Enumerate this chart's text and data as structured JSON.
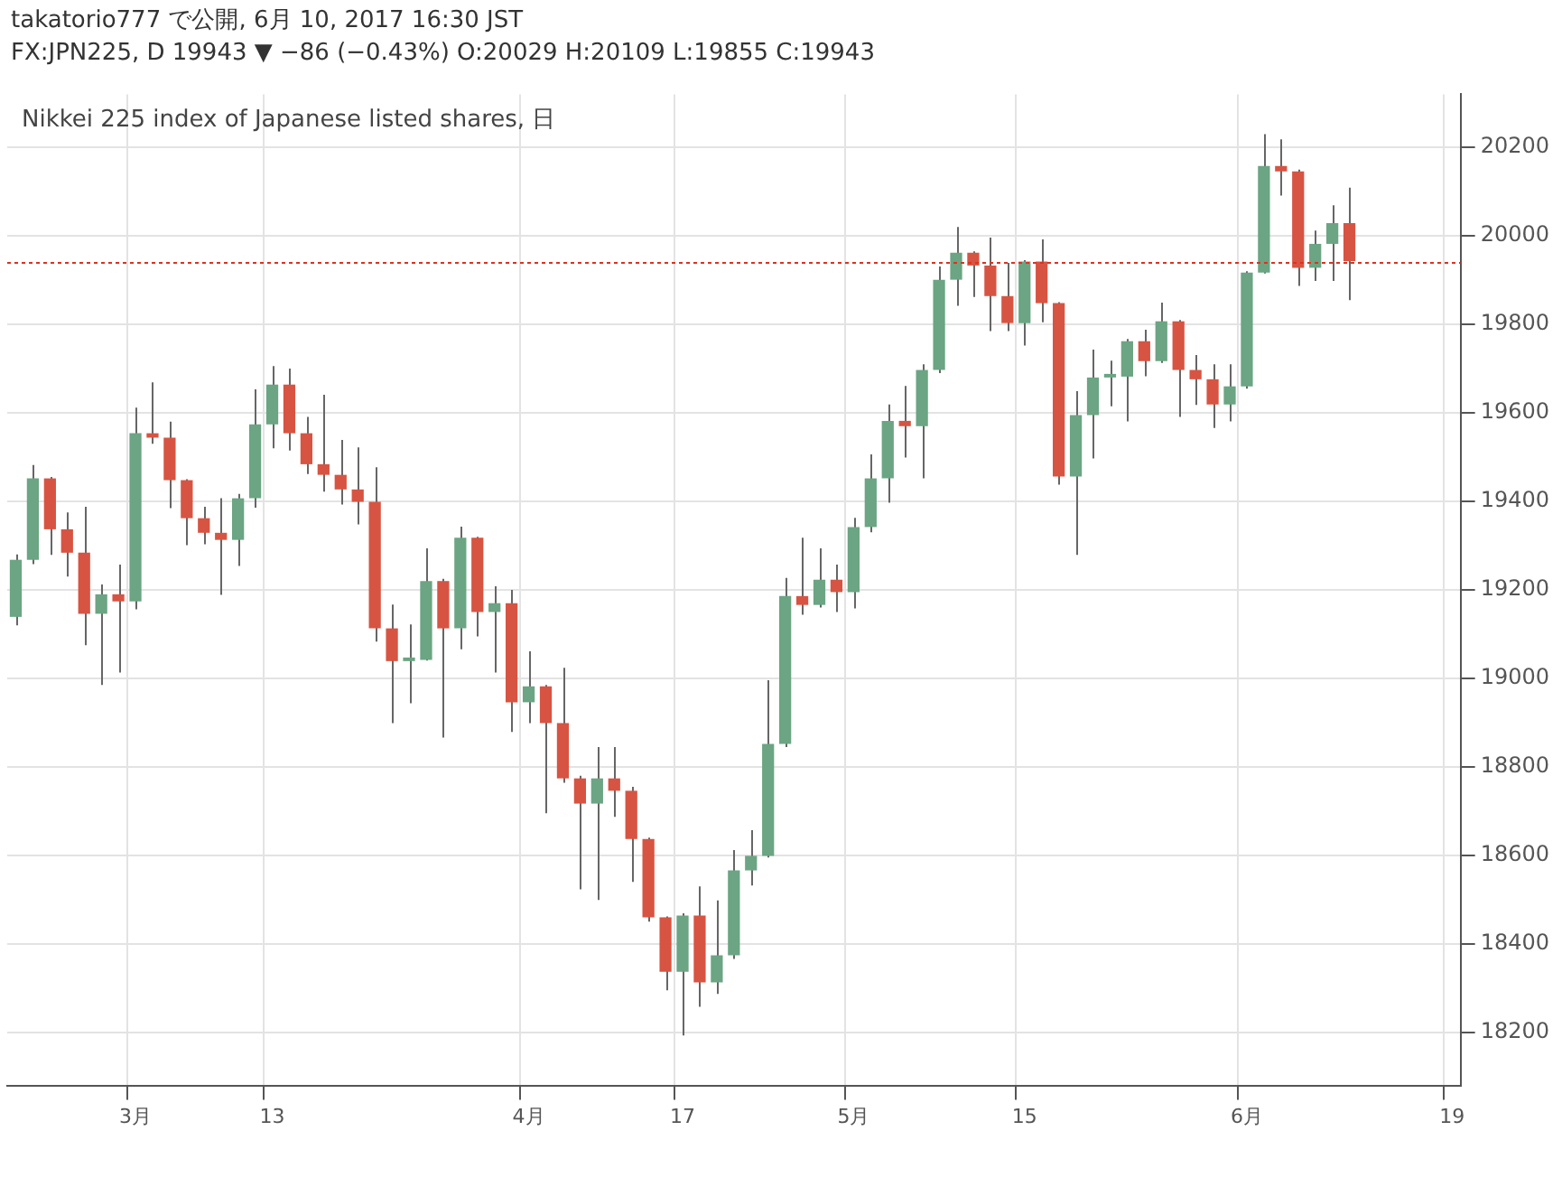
{
  "chart_data": {
    "type": "candlestick",
    "title": "takatorio777 で公開, 6月 10, 2017 16:30 JST",
    "subtitle": "FX:JPN225, D 19943 ▼ −86 (−0.43%) O:20029 H:20109 L:19855 C:19943",
    "annotations": [
      "Nikkei 225 index of Japanese listed shares, 日"
    ],
    "categories": [
      null,
      null,
      null,
      null,
      null,
      null,
      null,
      "3月",
      null,
      null,
      null,
      null,
      null,
      null,
      null,
      "13",
      null,
      null,
      null,
      null,
      null,
      null,
      null,
      null,
      null,
      null,
      null,
      null,
      null,
      null,
      "4月",
      null,
      null,
      null,
      null,
      null,
      null,
      null,
      null,
      "17",
      null,
      null,
      null,
      null,
      null,
      null,
      null,
      null,
      null,
      "5月",
      null,
      null,
      null,
      null,
      null,
      null,
      null,
      null,
      null,
      "15",
      null,
      null,
      null,
      null,
      null,
      null,
      null,
      null,
      null,
      null,
      null,
      null,
      "6月",
      null,
      null,
      null,
      null,
      null,
      null,
      null,
      null,
      null,
      null,
      null,
      "19"
    ],
    "ohlc": [
      [
        19139,
        19280,
        19120,
        19268
      ],
      [
        19268,
        19482,
        19258,
        19452
      ],
      [
        19452,
        19455,
        19279,
        19337
      ],
      [
        19337,
        19375,
        19230,
        19284
      ],
      [
        19284,
        19388,
        19075,
        19146
      ],
      [
        19146,
        19212,
        18985,
        19190
      ],
      [
        19190,
        19257,
        19013,
        19174
      ],
      [
        19174,
        19612,
        19156,
        19554
      ],
      [
        19554,
        19669,
        19530,
        19544
      ],
      [
        19544,
        19580,
        19385,
        19448
      ],
      [
        19448,
        19450,
        19301,
        19362
      ],
      [
        19362,
        19388,
        19303,
        19329
      ],
      [
        19329,
        19407,
        19189,
        19313
      ],
      [
        19313,
        19417,
        19254,
        19407
      ],
      [
        19407,
        19653,
        19386,
        19574
      ],
      [
        19574,
        19706,
        19520,
        19664
      ],
      [
        19664,
        19700,
        19515,
        19554
      ],
      [
        19554,
        19591,
        19462,
        19484
      ],
      [
        19484,
        19641,
        19422,
        19460
      ],
      [
        19460,
        19539,
        19393,
        19427
      ],
      [
        19427,
        19522,
        19348,
        19399
      ],
      [
        19399,
        19477,
        19083,
        19113
      ],
      [
        19113,
        19167,
        18899,
        19039
      ],
      [
        19039,
        19122,
        18944,
        19042
      ],
      [
        19042,
        19294,
        19040,
        19220
      ],
      [
        19220,
        19225,
        18866,
        19113
      ],
      [
        19113,
        19343,
        19066,
        19318
      ],
      [
        19318,
        19320,
        19095,
        19150
      ],
      [
        19150,
        19208,
        19013,
        19170
      ],
      [
        19170,
        19200,
        18879,
        18946
      ],
      [
        18946,
        19061,
        18899,
        18982
      ],
      [
        18982,
        18985,
        18695,
        18899
      ],
      [
        18899,
        19024,
        18764,
        18774
      ],
      [
        18774,
        18780,
        18523,
        18717
      ],
      [
        18717,
        18845,
        18499,
        18774
      ],
      [
        18774,
        18845,
        18687,
        18746
      ],
      [
        18746,
        18755,
        18540,
        18637
      ],
      [
        18637,
        18640,
        18450,
        18460
      ],
      [
        18460,
        18462,
        18295,
        18337
      ],
      [
        18337,
        18469,
        18193,
        18464
      ],
      [
        18464,
        18530,
        18258,
        18313
      ],
      [
        18313,
        18498,
        18287,
        18374
      ],
      [
        18374,
        18612,
        18366,
        18566
      ],
      [
        18566,
        18657,
        18532,
        18599
      ],
      [
        18599,
        18996,
        18595,
        18852
      ],
      [
        18852,
        19227,
        18845,
        19186
      ],
      [
        19186,
        19318,
        19144,
        19166
      ],
      [
        19166,
        19294,
        19160,
        19223
      ],
      [
        19223,
        19257,
        19150,
        19195
      ],
      [
        19195,
        19363,
        19158,
        19342
      ],
      [
        19342,
        19506,
        19330,
        19452
      ],
      [
        19452,
        19619,
        19397,
        19582
      ],
      [
        19582,
        19661,
        19499,
        19570
      ],
      [
        19570,
        19710,
        19452,
        19697
      ],
      [
        19697,
        19931,
        19690,
        19901
      ],
      [
        19901,
        20020,
        19842,
        19962
      ],
      [
        19962,
        19965,
        19862,
        19933
      ],
      [
        19933,
        19996,
        19785,
        19864
      ],
      [
        19864,
        19939,
        19785,
        19803
      ],
      [
        19803,
        19945,
        19752,
        19942
      ],
      [
        19942,
        19992,
        19805,
        19848
      ],
      [
        19848,
        19850,
        19438,
        19456
      ],
      [
        19456,
        19649,
        19279,
        19595
      ],
      [
        19595,
        19743,
        19497,
        19680
      ],
      [
        19680,
        19718,
        19615,
        19682
      ],
      [
        19682,
        19767,
        19581,
        19762
      ],
      [
        19762,
        19788,
        19683,
        19717
      ],
      [
        19717,
        19849,
        19713,
        19807
      ],
      [
        19807,
        19810,
        19591,
        19697
      ],
      [
        19697,
        19731,
        19618,
        19676
      ],
      [
        19676,
        19710,
        19566,
        19619
      ],
      [
        19619,
        19710,
        19581,
        19660
      ],
      [
        19660,
        19920,
        19655,
        19917
      ],
      [
        19917,
        20230,
        19915,
        20158
      ],
      [
        20158,
        20218,
        20091,
        20146
      ],
      [
        20146,
        20150,
        19887,
        19928
      ],
      [
        19928,
        20012,
        19898,
        19982
      ],
      [
        19982,
        20069,
        19898,
        20029
      ],
      [
        20029,
        20109,
        19855,
        19943
      ],
      null,
      null,
      null,
      null,
      null,
      null
    ],
    "colors": [
      "#6ba583",
      "#6ba583",
      "#d75442",
      "#d75442",
      "#d75442",
      "#6ba583",
      "#d75442",
      "#6ba583",
      "#d75442",
      "#d75442",
      "#d75442",
      "#d75442",
      "#d75442",
      "#6ba583",
      "#6ba583",
      "#6ba583",
      "#d75442",
      "#d75442",
      "#d75442",
      "#d75442",
      "#d75442",
      "#d75442",
      "#d75442",
      "#6ba583",
      "#6ba583",
      "#d75442",
      "#6ba583",
      "#d75442",
      "#6ba583",
      "#d75442",
      "#6ba583",
      "#d75442",
      "#d75442",
      "#d75442",
      "#6ba583",
      "#d75442",
      "#d75442",
      "#d75442",
      "#d75442",
      "#6ba583",
      "#d75442",
      "#6ba583",
      "#6ba583",
      "#6ba583",
      "#6ba583",
      "#6ba583",
      "#d75442",
      "#6ba583",
      "#d75442",
      "#6ba583",
      "#6ba583",
      "#6ba583",
      "#d75442",
      "#6ba583",
      "#6ba583",
      "#6ba583",
      "#d75442",
      "#d75442",
      "#d75442",
      "#6ba583",
      "#d75442",
      "#d75442",
      "#6ba583",
      "#6ba583",
      "#6ba583",
      "#6ba583",
      "#d75442",
      "#6ba583",
      "#d75442",
      "#d75442",
      "#d75442",
      "#6ba583",
      "#6ba583",
      "#6ba583",
      "#d75442",
      "#d75442",
      "#6ba583",
      "#6ba583",
      "#d75442",
      null,
      null,
      null,
      null,
      null,
      null
    ],
    "ylim": [
      18080,
      20320
    ],
    "yticks": [
      18200,
      18400,
      18600,
      18800,
      19000,
      19200,
      19400,
      19600,
      19800,
      20000,
      20200
    ],
    "grid": true,
    "legend": false,
    "ref_lines": [
      {
        "axis": "y",
        "value": 19943,
        "color": "#e0301e",
        "line_style": "dotted"
      }
    ]
  }
}
